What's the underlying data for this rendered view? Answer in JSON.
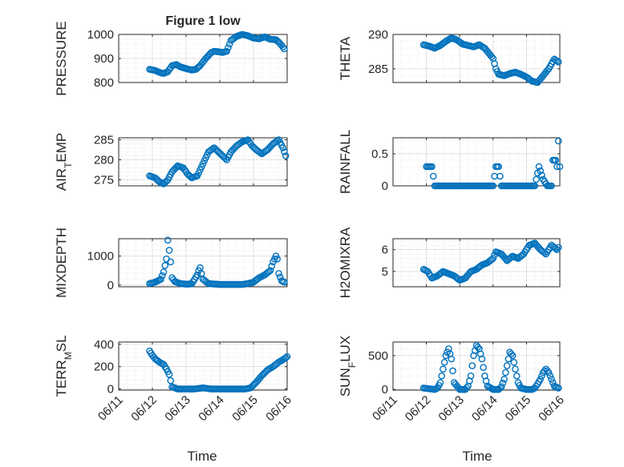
{
  "figure": {
    "title": "Figure 1 low",
    "marker_color": "#0072BD"
  },
  "chart_data": [
    {
      "type": "scatter",
      "ylabel": "PRESSURE",
      "xlim": [
        "06/11",
        "06/16"
      ],
      "ylim": [
        800,
        1000
      ],
      "yticks": [
        800,
        900,
        1000
      ],
      "xticks": [
        "06/11",
        "06/12",
        "06/13",
        "06/14",
        "06/15",
        "06/16"
      ],
      "grid": true,
      "x": [
        "06/11 22:00",
        "06/12 02:00",
        "06/12 06:00",
        "06/12 08:00",
        "06/12 11:00",
        "06/12 14:00",
        "06/12 17:00",
        "06/12 20:00",
        "06/13 00:00",
        "06/13 04:00",
        "06/13 07:00",
        "06/13 10:00",
        "06/13 14:00",
        "06/13 18:00",
        "06/13 20:00",
        "06/13 23:00",
        "06/14 02:00",
        "06/14 05:00",
        "06/14 08:00",
        "06/14 12:00",
        "06/14 16:00",
        "06/14 20:00",
        "06/15 00:00",
        "06/15 04:00",
        "06/15 08:00",
        "06/15 12:00",
        "06/15 16:00",
        "06/15 18:00",
        "06/15 20:00",
        "06/15 22:00"
      ],
      "y": [
        855,
        850,
        840,
        838,
        845,
        870,
        875,
        865,
        858,
        852,
        855,
        870,
        900,
        925,
        930,
        928,
        925,
        930,
        975,
        992,
        1000,
        995,
        985,
        982,
        990,
        980,
        978,
        968,
        955,
        940
      ]
    },
    {
      "type": "scatter",
      "ylabel": "THETA",
      "xlim": [
        "06/11",
        "06/16"
      ],
      "ylim": [
        283,
        290
      ],
      "yticks": [
        285,
        290
      ],
      "xticks": [
        "06/11",
        "06/12",
        "06/13",
        "06/14",
        "06/15",
        "06/16"
      ],
      "grid": true,
      "x": [
        "06/11 22:00",
        "06/12 02:00",
        "06/12 06:00",
        "06/12 10:00",
        "06/12 14:00",
        "06/12 18:00",
        "06/12 22:00",
        "06/13 02:00",
        "06/13 06:00",
        "06/13 10:00",
        "06/13 14:00",
        "06/13 18:00",
        "06/13 22:00",
        "06/14 00:00",
        "06/14 02:00",
        "06/14 04:00",
        "06/14 08:00",
        "06/14 12:00",
        "06/14 16:00",
        "06/14 20:00",
        "06/15 00:00",
        "06/15 04:00",
        "06/15 08:00",
        "06/15 12:00",
        "06/15 16:00",
        "06/15 20:00",
        "06/15 23:00"
      ],
      "y": [
        288.5,
        288.3,
        288.0,
        288.4,
        289.0,
        289.5,
        289.2,
        288.6,
        288.4,
        288.2,
        288.5,
        288.0,
        287.0,
        286.5,
        285.0,
        284.2,
        284.0,
        284.3,
        284.5,
        284.2,
        283.8,
        283.2,
        283.0,
        284.0,
        285.0,
        286.4,
        286.0
      ]
    },
    {
      "type": "scatter",
      "ylabel": "AIR_TEMP",
      "xlim": [
        "06/11",
        "06/16"
      ],
      "ylim": [
        273.5,
        285.5
      ],
      "yticks": [
        275,
        280,
        285
      ],
      "xticks": [
        "06/11",
        "06/12",
        "06/13",
        "06/14",
        "06/15",
        "06/16"
      ],
      "grid": true,
      "x": [
        "06/11 22:00",
        "06/12 02:00",
        "06/12 05:00",
        "06/12 08:00",
        "06/12 11:00",
        "06/12 14:00",
        "06/12 18:00",
        "06/12 22:00",
        "06/13 01:00",
        "06/13 04:00",
        "06/13 08:00",
        "06/13 12:00",
        "06/13 16:00",
        "06/13 20:00",
        "06/13 23:00",
        "06/14 02:00",
        "06/14 05:00",
        "06/14 08:00",
        "06/14 12:00",
        "06/14 16:00",
        "06/14 20:00",
        "06/14 23:00",
        "06/15 02:00",
        "06/15 06:00",
        "06/15 10:00",
        "06/15 14:00",
        "06/15 18:00",
        "06/15 21:00",
        "06/15 23:00"
      ],
      "y": [
        276.0,
        275.5,
        274.5,
        274.0,
        275.0,
        277.0,
        278.5,
        278.0,
        276.5,
        275.5,
        276.0,
        279.0,
        282.0,
        283.0,
        282.0,
        281.0,
        280.0,
        282.0,
        283.5,
        284.5,
        285.0,
        283.5,
        282.5,
        281.5,
        282.5,
        284.0,
        285.0,
        283.0,
        281.0
      ]
    },
    {
      "type": "scatter",
      "ylabel": "RAINFALL",
      "xlim": [
        "06/11",
        "06/16"
      ],
      "ylim": [
        0,
        0.75
      ],
      "yticks": [
        0,
        0.5
      ],
      "xticks": [
        "06/11",
        "06/12",
        "06/13",
        "06/14",
        "06/15",
        "06/16"
      ],
      "grid": true,
      "x": [
        "06/12 00:00",
        "06/12 02:00",
        "06/12 04:00",
        "06/12 06:00",
        "06/12 12:00",
        "06/12 18:00",
        "06/13 00:00",
        "06/13 06:00",
        "06/13 12:00",
        "06/13 18:00",
        "06/14 00:00",
        "06/14 02:00",
        "06/14 04:00",
        "06/14 06:00",
        "06/14 12:00",
        "06/14 18:00",
        "06/15 00:00",
        "06/15 06:00",
        "06/15 09:00",
        "06/15 12:00",
        "06/15 15:00",
        "06/15 18:00",
        "06/15 19:00",
        "06/15 21:00",
        "06/15 22:00",
        "06/15 23:00",
        "06/16 00:00"
      ],
      "y": [
        0.3,
        0.3,
        0.3,
        0,
        0,
        0,
        0,
        0,
        0,
        0,
        0,
        0.3,
        0.3,
        0,
        0,
        0,
        0,
        0,
        0.3,
        0.1,
        0,
        0,
        0.4,
        0.4,
        0.3,
        0.7,
        0.3
      ]
    },
    {
      "type": "scatter",
      "ylabel": "MIXDEPTH",
      "xlim": [
        "06/11",
        "06/16"
      ],
      "ylim": [
        -60,
        1600
      ],
      "yticks": [
        0,
        1000
      ],
      "xticks": [
        "06/11",
        "06/12",
        "06/13",
        "06/14",
        "06/15",
        "06/16"
      ],
      "grid": true,
      "x": [
        "06/11 22:00",
        "06/12 02:00",
        "06/12 06:00",
        "06/12 08:00",
        "06/12 10:00",
        "06/12 11:00",
        "06/12 12:00",
        "06/12 13:00",
        "06/12 14:00",
        "06/12 16:00",
        "06/12 20:00",
        "06/13 00:00",
        "06/13 04:00",
        "06/13 08:00",
        "06/13 09:00",
        "06/13 10:00",
        "06/13 12:00",
        "06/13 16:00",
        "06/14 00:00",
        "06/14 08:00",
        "06/14 16:00",
        "06/14 20:00",
        "06/15 00:00",
        "06/15 04:00",
        "06/15 08:00",
        "06/15 12:00",
        "06/15 14:00",
        "06/15 16:00",
        "06/15 17:00",
        "06/15 18:00",
        "06/15 20:00",
        "06/15 22:00"
      ],
      "y": [
        50,
        100,
        200,
        450,
        900,
        1550,
        1200,
        800,
        250,
        120,
        50,
        30,
        40,
        350,
        500,
        600,
        200,
        50,
        20,
        20,
        20,
        50,
        100,
        250,
        350,
        500,
        800,
        1000,
        900,
        400,
        150,
        100
      ]
    },
    {
      "type": "scatter",
      "ylabel": "H2OMIXRA",
      "xlim": [
        "06/11",
        "06/16"
      ],
      "ylim": [
        4.3,
        6.5
      ],
      "yticks": [
        5,
        6
      ],
      "xticks": [
        "06/11",
        "06/12",
        "06/13",
        "06/14",
        "06/15",
        "06/16"
      ],
      "grid": true,
      "x": [
        "06/11 22:00",
        "06/12 01:00",
        "06/12 04:00",
        "06/12 08:00",
        "06/12 12:00",
        "06/12 16:00",
        "06/12 20:00",
        "06/13 00:00",
        "06/13 04:00",
        "06/13 08:00",
        "06/13 12:00",
        "06/13 16:00",
        "06/13 20:00",
        "06/14 00:00",
        "06/14 02:00",
        "06/14 06:00",
        "06/14 10:00",
        "06/14 14:00",
        "06/14 18:00",
        "06/14 22:00",
        "06/15 02:00",
        "06/15 06:00",
        "06/15 10:00",
        "06/15 14:00",
        "06/15 18:00",
        "06/15 22:00",
        "06/15 23:00"
      ],
      "y": [
        5.1,
        5.0,
        4.7,
        4.8,
        5.0,
        4.9,
        4.8,
        4.6,
        4.7,
        5.0,
        5.1,
        5.3,
        5.4,
        5.6,
        5.9,
        5.8,
        5.5,
        5.7,
        5.6,
        5.8,
        6.2,
        6.3,
        6.0,
        5.8,
        6.2,
        6.0,
        6.1
      ]
    },
    {
      "type": "scatter",
      "ylabel": "TERR_MSL",
      "xlim": [
        "06/11",
        "06/16"
      ],
      "ylim": [
        -10,
        420
      ],
      "yticks": [
        0,
        200,
        400
      ],
      "xticks": [
        "06/11",
        "06/12",
        "06/13",
        "06/14",
        "06/15",
        "06/16"
      ],
      "grid": true,
      "x": [
        "06/11 22:00",
        "06/12 00:00",
        "06/12 02:00",
        "06/12 05:00",
        "06/12 08:00",
        "06/12 10:00",
        "06/12 12:00",
        "06/12 14:00",
        "06/12 18:00",
        "06/13 00:00",
        "06/13 06:00",
        "06/13 12:00",
        "06/13 18:00",
        "06/14 00:00",
        "06/14 06:00",
        "06/14 12:00",
        "06/14 18:00",
        "06/14 22:00",
        "06/15 02:00",
        "06/15 06:00",
        "06/15 10:00",
        "06/15 14:00",
        "06/15 18:00",
        "06/15 22:00",
        "06/16 00:00"
      ],
      "y": [
        340,
        300,
        270,
        240,
        220,
        180,
        130,
        20,
        0,
        0,
        0,
        10,
        0,
        0,
        0,
        0,
        0,
        10,
        60,
        120,
        170,
        200,
        240,
        270,
        290
      ]
    },
    {
      "type": "scatter",
      "ylabel": "SUN_FLUX",
      "xlim": [
        "06/11",
        "06/16"
      ],
      "ylim": [
        -10,
        700
      ],
      "yticks": [
        0,
        500
      ],
      "xticks": [
        "06/11",
        "06/12",
        "06/13",
        "06/14",
        "06/15",
        "06/16"
      ],
      "grid": true,
      "x": [
        "06/11 22:00",
        "06/12 02:00",
        "06/12 06:00",
        "06/12 08:00",
        "06/12 10:00",
        "06/12 12:00",
        "06/12 14:00",
        "06/12 16:00",
        "06/12 18:00",
        "06/12 20:00",
        "06/13 00:00",
        "06/13 04:00",
        "06/13 06:00",
        "06/13 08:00",
        "06/13 10:00",
        "06/13 12:00",
        "06/13 14:00",
        "06/13 16:00",
        "06/13 18:00",
        "06/13 20:00",
        "06/14 00:00",
        "06/14 04:00",
        "06/14 06:00",
        "06/14 08:00",
        "06/14 10:00",
        "06/14 12:00",
        "06/14 14:00",
        "06/14 16:00",
        "06/14 18:00",
        "06/14 20:00",
        "06/15 00:00",
        "06/15 04:00",
        "06/15 06:00",
        "06/15 08:00",
        "06/15 10:00",
        "06/15 12:00",
        "06/15 14:00",
        "06/15 16:00",
        "06/15 18:00",
        "06/15 20:00",
        "06/15 23:00"
      ],
      "y": [
        20,
        10,
        0,
        20,
        100,
        300,
        500,
        600,
        450,
        100,
        0,
        0,
        50,
        200,
        500,
        650,
        600,
        450,
        200,
        50,
        0,
        0,
        40,
        150,
        350,
        550,
        500,
        300,
        100,
        20,
        0,
        0,
        20,
        80,
        150,
        250,
        300,
        250,
        150,
        50,
        20
      ]
    }
  ],
  "x_axis_label": "Time"
}
